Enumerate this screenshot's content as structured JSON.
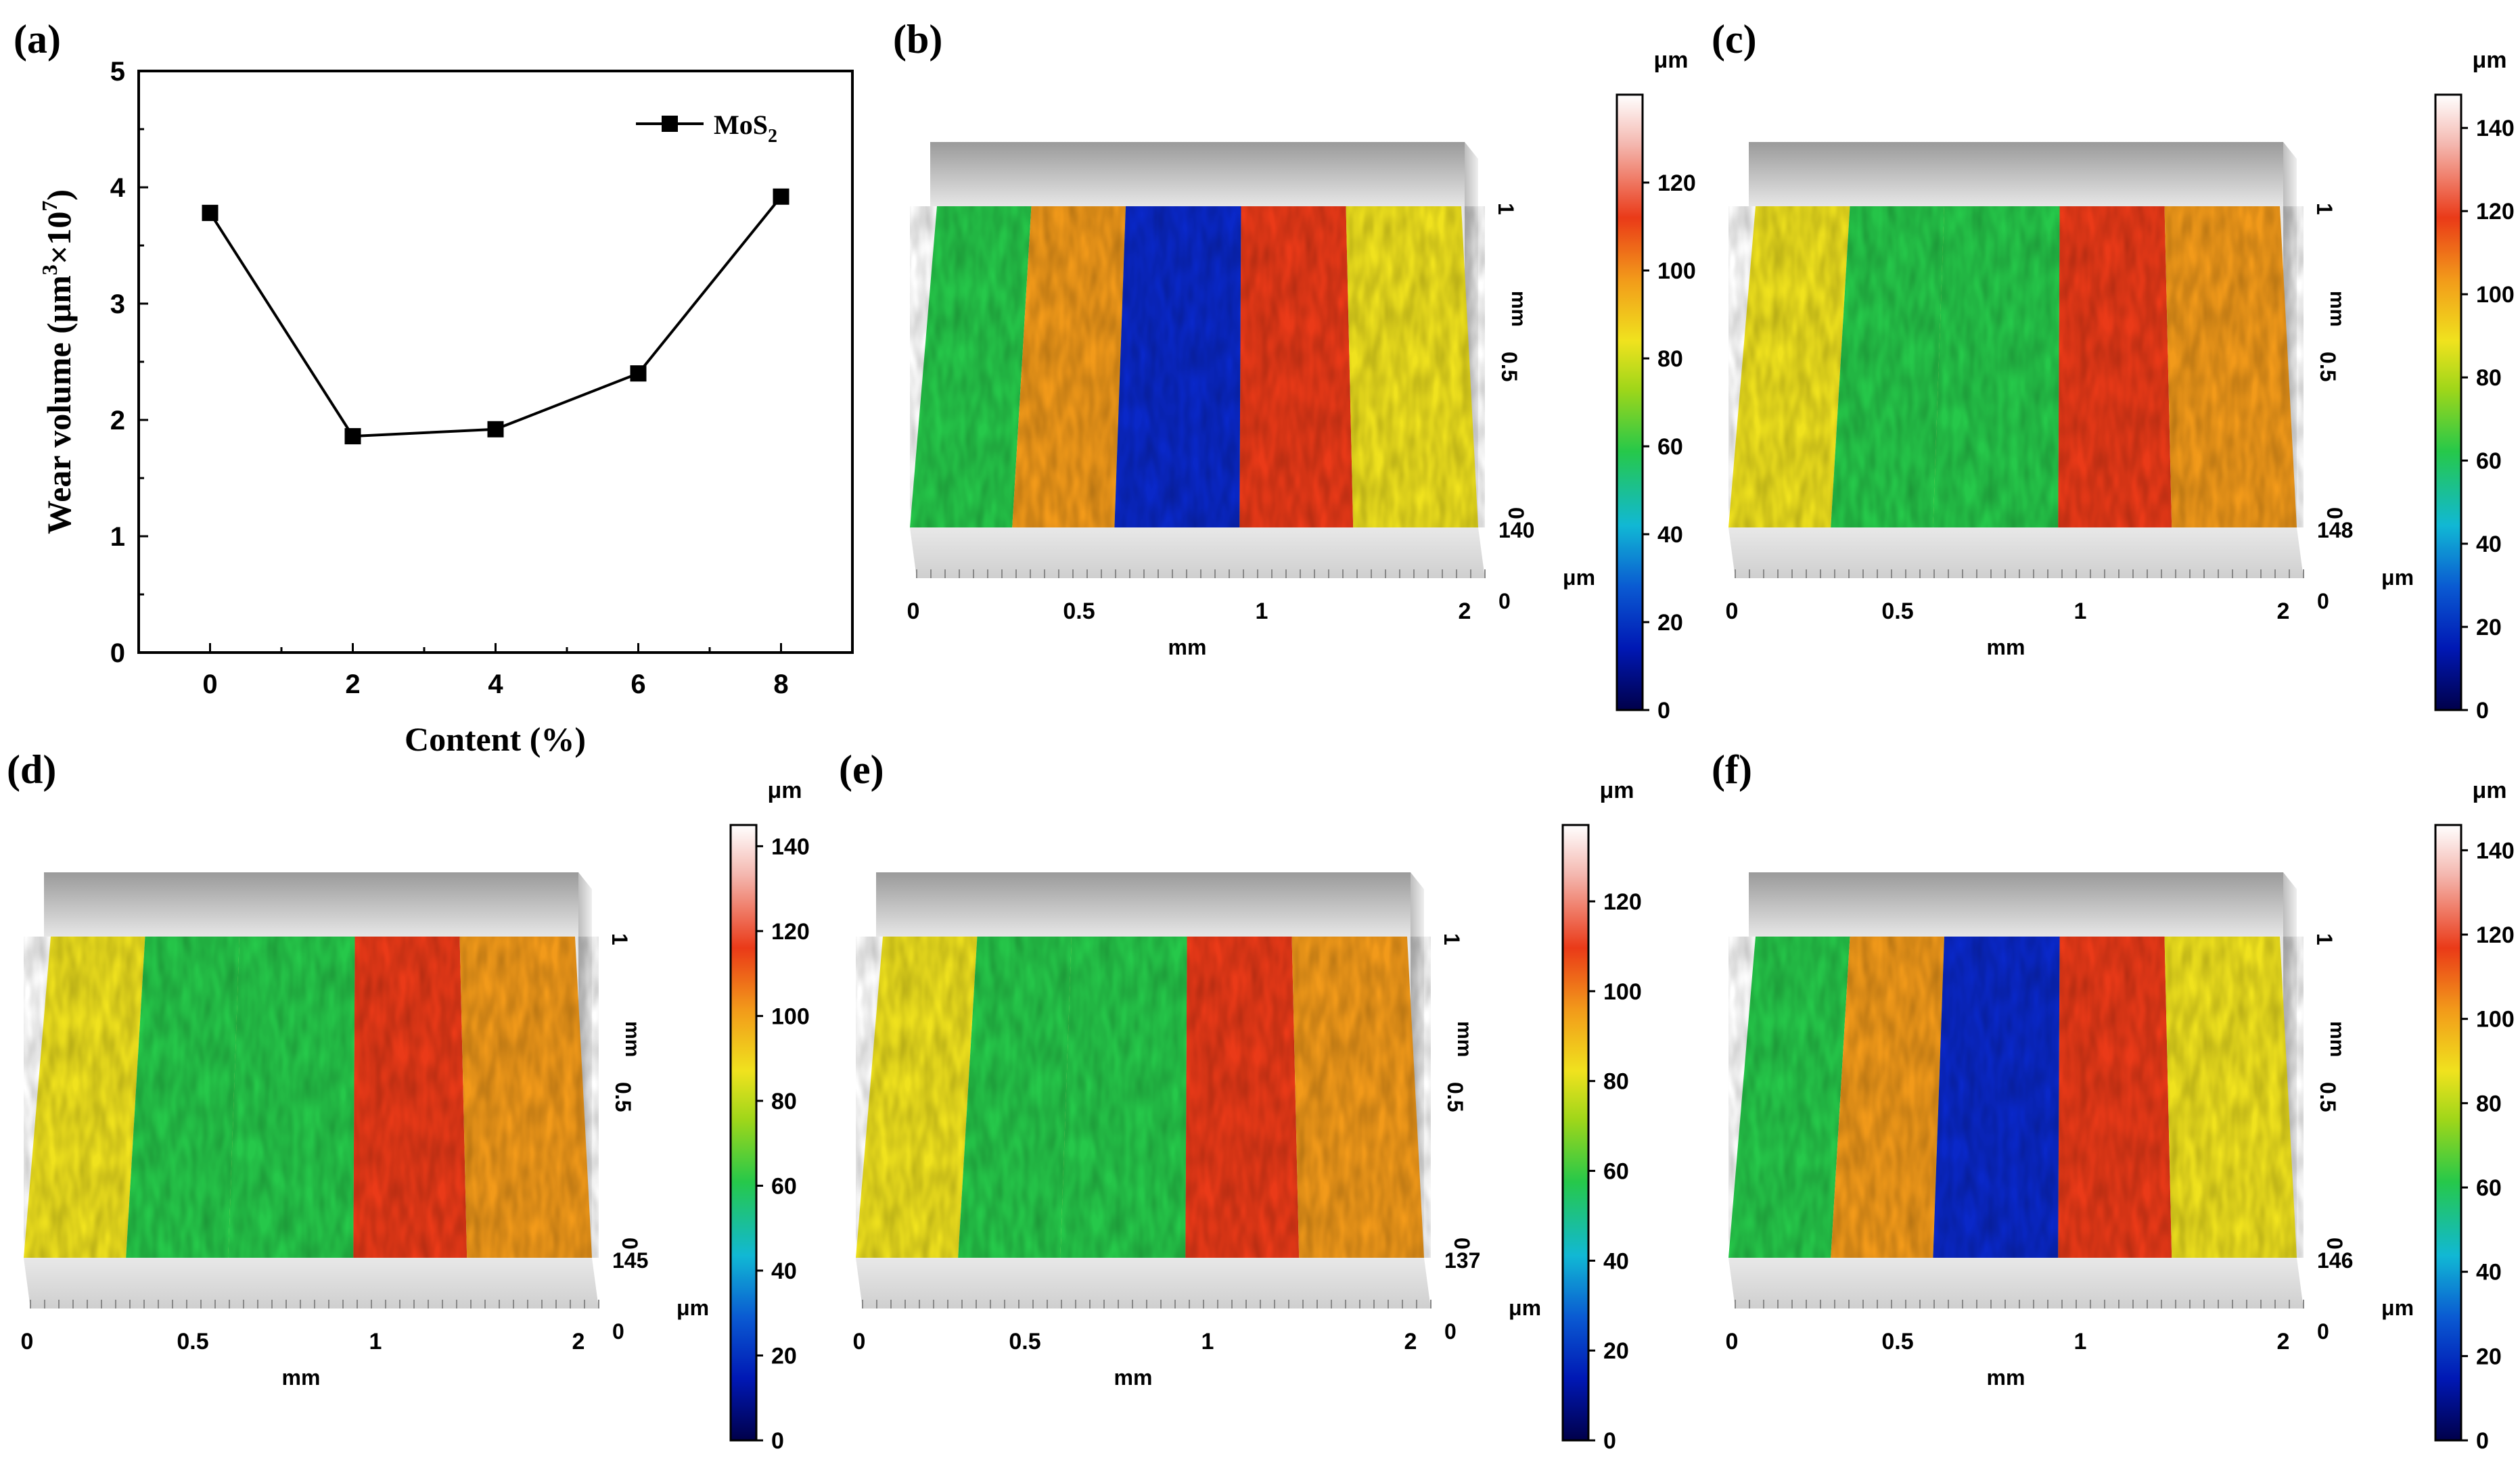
{
  "colors": {
    "axis": "#000000",
    "colormap": [
      "#00004a",
      "#0018b4",
      "#0a5ad2",
      "#11b8d4",
      "#26c84a",
      "#9ed61a",
      "#f0e21e",
      "#f29a1a",
      "#ea3a18",
      "#f4b8b0",
      "#ffffff"
    ]
  },
  "chart_data": [
    {
      "panel": "(a)",
      "type": "line",
      "x": [
        0,
        2,
        4,
        6,
        8
      ],
      "series": [
        {
          "name": "MoS",
          "name_sub": "2",
          "values": [
            3.78,
            1.86,
            1.92,
            2.4,
            3.92
          ]
        }
      ],
      "xlabel": "Content (%)",
      "ylabel_parts": [
        "Wear volume (μm",
        "3",
        "×10",
        "7",
        ")"
      ],
      "xticks": [
        "0",
        "2",
        "4",
        "6",
        "8"
      ],
      "yticks": [
        "0",
        "1",
        "2",
        "3",
        "4",
        "5"
      ],
      "xlim": [
        -1,
        9
      ],
      "ylim": [
        0,
        5
      ],
      "legend": "top-right"
    },
    {
      "panel": "(b)",
      "type": "surface",
      "unit": "μm",
      "colorbar_ticks": [
        "0",
        "20",
        "40",
        "60",
        "80",
        "100",
        "120"
      ],
      "colorbar_max": 140,
      "x_ticks": [
        "0",
        "0.5",
        "1",
        "2"
      ],
      "xlabel": "mm",
      "y_ticks": [
        "0",
        "0.5",
        "1"
      ],
      "ylabel": "mm",
      "z_ticks": [
        "0",
        "140"
      ],
      "zlabel": "μm",
      "wear_track_depth": "deep"
    },
    {
      "panel": "(c)",
      "type": "surface",
      "unit": "μm",
      "colorbar_ticks": [
        "0",
        "20",
        "40",
        "60",
        "80",
        "100",
        "120",
        "140"
      ],
      "colorbar_max": 148,
      "x_ticks": [
        "0",
        "0.5",
        "1",
        "2"
      ],
      "xlabel": "mm",
      "y_ticks": [
        "0",
        "0.5",
        "1"
      ],
      "ylabel": "mm",
      "z_ticks": [
        "0",
        "148"
      ],
      "zlabel": "μm",
      "wear_track_depth": "shallow"
    },
    {
      "panel": "(d)",
      "type": "surface",
      "unit": "μm",
      "colorbar_ticks": [
        "0",
        "20",
        "40",
        "60",
        "80",
        "100",
        "120",
        "140"
      ],
      "colorbar_max": 145,
      "x_ticks": [
        "0",
        "0.5",
        "1",
        "2"
      ],
      "xlabel": "mm",
      "y_ticks": [
        "0",
        "0.5",
        "1"
      ],
      "ylabel": "mm",
      "z_ticks": [
        "0",
        "145"
      ],
      "zlabel": "μm",
      "wear_track_depth": "shallow"
    },
    {
      "panel": "(e)",
      "type": "surface",
      "unit": "μm",
      "colorbar_ticks": [
        "0",
        "20",
        "40",
        "60",
        "80",
        "100",
        "120"
      ],
      "colorbar_max": 137,
      "x_ticks": [
        "0",
        "0.5",
        "1",
        "2"
      ],
      "xlabel": "mm",
      "y_ticks": [
        "0",
        "0.5",
        "1"
      ],
      "ylabel": "mm",
      "z_ticks": [
        "0",
        "137"
      ],
      "zlabel": "μm",
      "wear_track_depth": "shallow"
    },
    {
      "panel": "(f)",
      "type": "surface",
      "unit": "μm",
      "colorbar_ticks": [
        "0",
        "20",
        "40",
        "60",
        "80",
        "100",
        "120",
        "140"
      ],
      "colorbar_max": 146,
      "x_ticks": [
        "0",
        "0.5",
        "1",
        "2"
      ],
      "xlabel": "mm",
      "y_ticks": [
        "0",
        "0.5",
        "1"
      ],
      "ylabel": "mm",
      "z_ticks": [
        "0",
        "146"
      ],
      "zlabel": "μm",
      "wear_track_depth": "deep"
    }
  ]
}
